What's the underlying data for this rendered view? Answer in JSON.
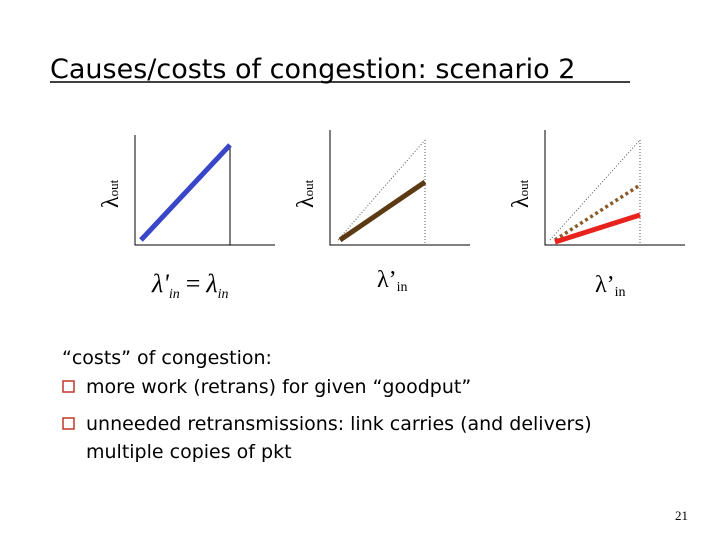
{
  "title": "Causes/costs of congestion: scenario 2",
  "plots": [
    {
      "y_label": {
        "symbol": "λ",
        "sub": "out"
      },
      "x_label": {
        "lhs": "λ'",
        "lhs_sub": "in",
        "eq": "=",
        "rhs": "λ",
        "rhs_sub": "in"
      }
    },
    {
      "y_label": {
        "symbol": "λ",
        "sub": "out"
      },
      "x_label": {
        "symbol": "λ’",
        "sub": "in"
      }
    },
    {
      "y_label": {
        "symbol": "λ",
        "sub": "out"
      },
      "x_label": {
        "symbol": "λ’",
        "sub": "in"
      }
    }
  ],
  "body": {
    "heading": "“costs” of congestion:",
    "bullets": [
      "more work (retrans) for given “goodput”",
      "unneeded retransmissions: link carries (and delivers)",
      "multiple copies of pkt"
    ]
  },
  "page_number": "21"
}
